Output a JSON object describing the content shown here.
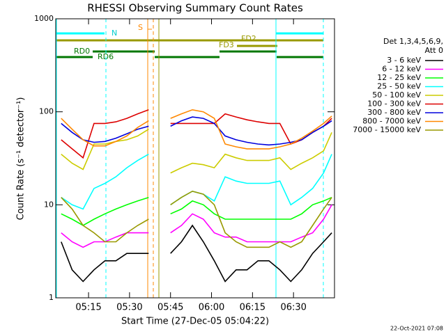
{
  "chart_data": {
    "type": "line",
    "title": "RHESSI Observing Summary Count Rates",
    "x_label": "Start Time (27-Dec-05 05:04:22)",
    "y_label": "Count Rate (s⁻¹ detector⁻¹)",
    "legend_title": [
      "Det 1,3,4,5,6,9,",
      "Att 0"
    ],
    "footer": "22-Oct-2021 07:08",
    "annotations": [
      "N",
      "S",
      "FD2",
      "FD3",
      "RD0",
      "RD6"
    ],
    "log_y": true,
    "xlim": [
      3,
      105
    ],
    "ylim": [
      1,
      1000
    ],
    "yticks": [
      1,
      10,
      100,
      1000
    ],
    "xticks": [
      {
        "value": 15,
        "label": "05:15"
      },
      {
        "value": 30,
        "label": "05:30"
      },
      {
        "value": 45,
        "label": "05:45"
      },
      {
        "value": 60,
        "label": "06:00"
      },
      {
        "value": 75,
        "label": "06:15"
      },
      {
        "value": 90,
        "label": "06:30"
      }
    ],
    "x": [
      5,
      9,
      13,
      17,
      21,
      25,
      29,
      33,
      37,
      41,
      45,
      49,
      53,
      57,
      61,
      65,
      69,
      73,
      77,
      81,
      85,
      89,
      93,
      97,
      101,
      104
    ],
    "series": [
      {
        "name": "3 - 6 keV",
        "color": "#000000",
        "values": [
          4,
          2,
          1.5,
          2,
          2.5,
          2.5,
          3,
          3,
          3,
          null,
          3,
          4,
          6,
          4,
          2.5,
          1.5,
          2,
          2,
          2.5,
          2.5,
          2,
          1.5,
          2,
          3,
          4,
          5
        ]
      },
      {
        "name": "6 - 12 keV",
        "color": "#ff00ff",
        "values": [
          5,
          4,
          3.5,
          4,
          4,
          4.5,
          5,
          5,
          5,
          null,
          5,
          6,
          8,
          7,
          5,
          4.5,
          4.5,
          4,
          4,
          4,
          4,
          4,
          4.5,
          5,
          7,
          10
        ]
      },
      {
        "name": "12 - 25 keV",
        "color": "#00ff00",
        "values": [
          8,
          7,
          6,
          7,
          8,
          9,
          10,
          11,
          12,
          null,
          8,
          9,
          11,
          10,
          8,
          7,
          7,
          7,
          7,
          7,
          7,
          7,
          8,
          10,
          11,
          12
        ]
      },
      {
        "name": "25 - 50 keV",
        "color": "#00ffff",
        "values": [
          12,
          10,
          9,
          15,
          17,
          20,
          25,
          30,
          35,
          null,
          10,
          12,
          14,
          13,
          11,
          20,
          18,
          17,
          17,
          17,
          18,
          10,
          12,
          15,
          22,
          35
        ]
      },
      {
        "name": "50 - 100 keV",
        "color": "#cccc00",
        "values": [
          35,
          28,
          24,
          45,
          45,
          48,
          50,
          55,
          65,
          null,
          22,
          25,
          28,
          27,
          25,
          35,
          32,
          30,
          30,
          30,
          32,
          24,
          28,
          32,
          38,
          60
        ]
      },
      {
        "name": "100 - 300 keV",
        "color": "#dd0000",
        "values": [
          50,
          40,
          32,
          75,
          75,
          78,
          85,
          95,
          105,
          null,
          75,
          75,
          75,
          75,
          75,
          95,
          88,
          82,
          78,
          75,
          75,
          45,
          50,
          60,
          70,
          85
        ]
      },
      {
        "name": "300 - 800 keV",
        "color": "#0000dd",
        "values": [
          75,
          60,
          50,
          47,
          48,
          52,
          58,
          65,
          70,
          null,
          70,
          80,
          88,
          85,
          75,
          55,
          50,
          47,
          45,
          44,
          45,
          47,
          50,
          60,
          70,
          80
        ]
      },
      {
        "name": "800 - 7000 keV",
        "color": "#ff8800",
        "values": [
          85,
          65,
          50,
          43,
          43,
          48,
          55,
          68,
          80,
          null,
          85,
          95,
          105,
          100,
          85,
          45,
          42,
          40,
          40,
          40,
          42,
          45,
          52,
          62,
          75,
          90
        ]
      },
      {
        "name": "7000 - 15000 keV",
        "color": "#999900",
        "values": [
          12,
          9,
          6,
          5,
          4,
          4,
          5,
          6,
          7,
          null,
          10,
          12,
          14,
          13,
          10,
          5,
          4,
          3.5,
          3.5,
          3.5,
          4,
          3.5,
          4,
          6,
          9,
          12
        ]
      }
    ]
  }
}
